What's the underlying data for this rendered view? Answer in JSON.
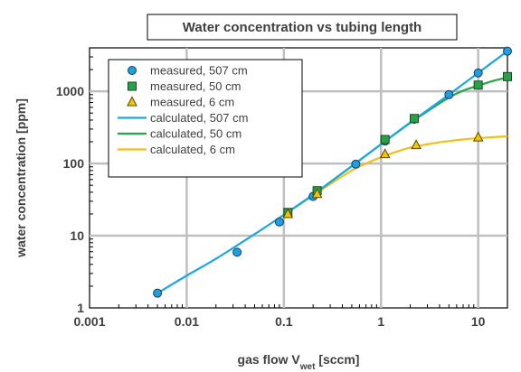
{
  "chart_data": {
    "type": "scatter",
    "title": "Water concentration vs tubing length",
    "xlabel_main": "gas flow V",
    "xlabel_sub": "wet",
    "xlabel_unit": " [sccm]",
    "ylabel": "water concentration  [ppm]",
    "x_scale": "log",
    "y_scale": "log",
    "xlim": [
      0.001,
      20
    ],
    "ylim": [
      1,
      4000
    ],
    "x_ticks": [
      0.001,
      0.01,
      0.1,
      1,
      10
    ],
    "x_tick_labels": [
      "0.001",
      "0.01",
      "0.1",
      "1",
      "10"
    ],
    "y_ticks": [
      1,
      10,
      100,
      1000
    ],
    "y_tick_labels": [
      "1",
      "10",
      "100",
      "1000"
    ],
    "grid": true,
    "legend_position": "top-left",
    "series": [
      {
        "name": "measured, 507 cm",
        "kind": "marker",
        "marker": "circle",
        "color": "#1BA1E2",
        "x": [
          0.005,
          0.033,
          0.09,
          0.2,
          0.55,
          1.1,
          2.2,
          5,
          10,
          20
        ],
        "y": [
          1.6,
          5.9,
          15.5,
          35,
          98,
          205,
          410,
          900,
          1800,
          3600
        ]
      },
      {
        "name": "measured, 50 cm",
        "kind": "marker",
        "marker": "square",
        "color": "#27A24A",
        "x": [
          0.11,
          0.22,
          1.1,
          2.2,
          10,
          20
        ],
        "y": [
          21,
          42,
          215,
          420,
          1220,
          1600
        ]
      },
      {
        "name": "measured, 6 cm",
        "kind": "marker",
        "marker": "triangle",
        "color": "#F5C400",
        "x": [
          0.11,
          0.22,
          1.1,
          2.3,
          10
        ],
        "y": [
          20,
          38,
          135,
          180,
          230
        ]
      },
      {
        "name": "calculated, 507 cm",
        "kind": "line",
        "color": "#1BA8E0",
        "x": [
          0.005,
          0.01,
          0.02,
          0.05,
          0.1,
          0.2,
          0.5,
          1,
          2,
          5,
          10,
          20
        ],
        "y": [
          1.6,
          2.8,
          4.8,
          10.5,
          19.5,
          37,
          92,
          185,
          370,
          900,
          1800,
          3600
        ]
      },
      {
        "name": "calculated, 50 cm",
        "kind": "line",
        "color": "#22A847",
        "x": [
          0.1,
          0.2,
          0.5,
          1,
          2,
          3,
          5,
          7,
          10,
          15,
          20
        ],
        "y": [
          19.5,
          37,
          92,
          185,
          365,
          530,
          820,
          1020,
          1200,
          1420,
          1550
        ]
      },
      {
        "name": "calculated, 6 cm",
        "kind": "line",
        "color": "#F2BE1A",
        "x": [
          0.1,
          0.2,
          0.3,
          0.5,
          0.7,
          1,
          1.5,
          2,
          3,
          5,
          10,
          20
        ],
        "y": [
          19.5,
          36,
          52,
          80,
          100,
          122,
          148,
          166,
          185,
          205,
          225,
          238
        ]
      }
    ]
  }
}
